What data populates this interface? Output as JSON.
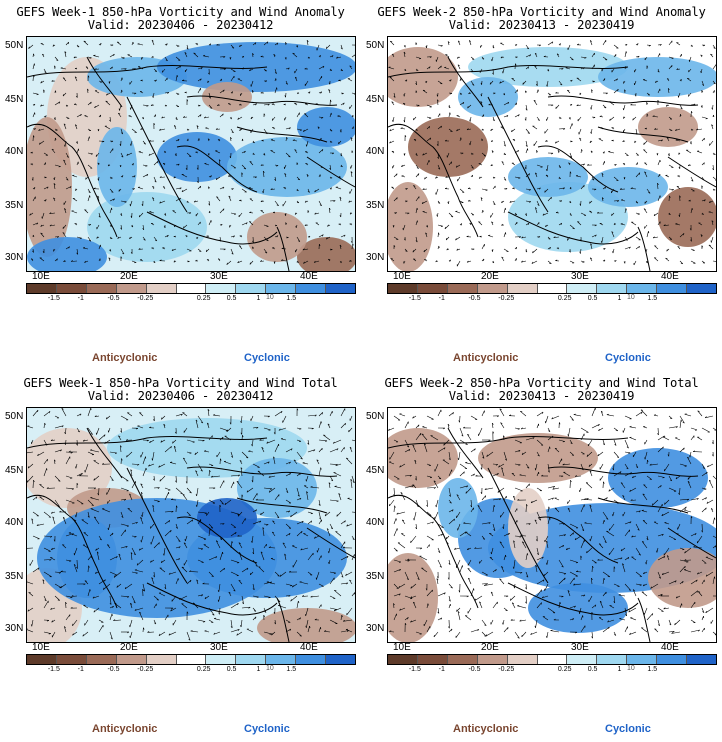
{
  "panels": [
    {
      "title_line1": "GEFS Week-1 850-hPa Vorticity and Wind Anomaly",
      "title_line2": "Valid: 20230406 - 20230412"
    },
    {
      "title_line1": "GEFS Week-2 850-hPa Vorticity and Wind Anomaly",
      "title_line2": "Valid: 20230413 - 20230419"
    },
    {
      "title_line1": "GEFS Week-1 850-hPa Vorticity and Wind Total",
      "title_line2": "Valid: 20230406 - 20230412"
    },
    {
      "title_line1": "GEFS Week-2 850-hPa Vorticity and Wind Total",
      "title_line2": "Valid: 20230413 - 20230419"
    }
  ],
  "lat_labels": [
    "50N",
    "45N",
    "40N",
    "35N",
    "30N"
  ],
  "lon_labels": [
    "10E",
    "20E",
    "30E",
    "40E"
  ],
  "colorbar": {
    "tick_labels": [
      "-1.5",
      "-1",
      "-0.5",
      "-0.25",
      "0.25",
      "0.5",
      "1",
      "1.5"
    ],
    "scale_label": "10",
    "colors": [
      "#5e3b2a",
      "#7a4c3a",
      "#9a6a57",
      "#c19a8b",
      "#e3cfc6",
      "#ffffff",
      "#cfeef6",
      "#9fd8f0",
      "#6bb6ea",
      "#3f8fe0",
      "#1f63c8"
    ]
  },
  "legend": {
    "anticyclonic": "Anticyclonic",
    "cyclonic": "Cyclonic"
  }
}
